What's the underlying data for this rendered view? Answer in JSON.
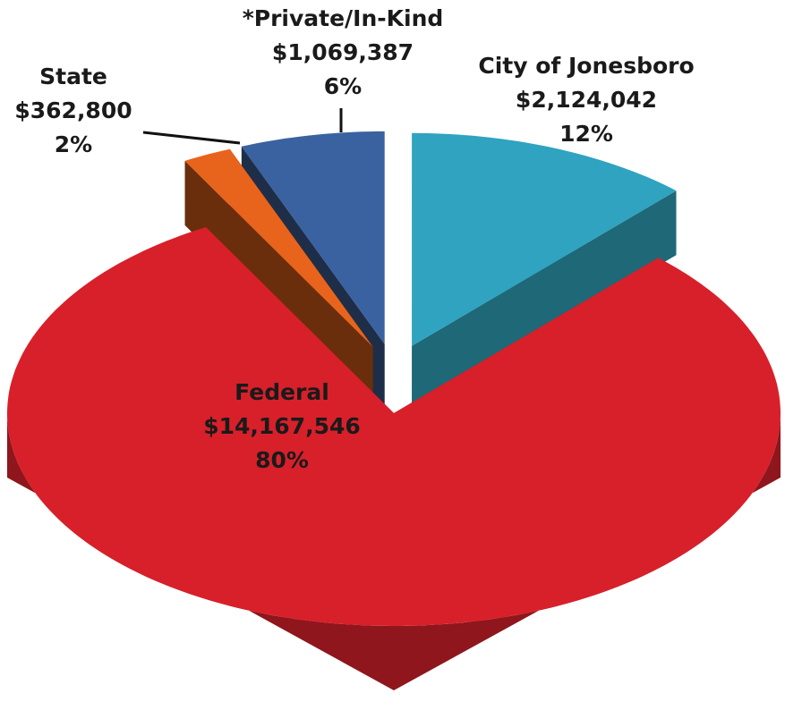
{
  "chart_data": {
    "type": "pie",
    "categories": [
      "City of Jonesboro",
      "Federal",
      "State",
      "*Private/In-Kind"
    ],
    "values": [
      2124042,
      14167546,
      362800,
      1069387
    ],
    "value_labels": [
      "$2,124,042",
      "$14,167,546",
      "$362,800",
      "$1,069,387"
    ],
    "percent_labels": [
      "12%",
      "80%",
      "2%",
      "6%"
    ],
    "colors": [
      "#2fa3c0",
      "#d8202a",
      "#e8641c",
      "#3a62a0"
    ],
    "side_colors": [
      "#1f6878",
      "#8e161c",
      "#6a2e0c",
      "#1e2e48"
    ]
  }
}
